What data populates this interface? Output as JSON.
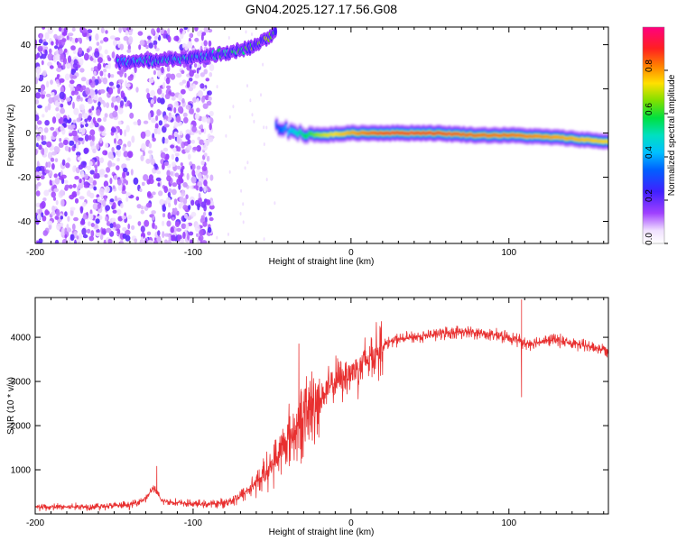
{
  "figure": {
    "title": "GN04.2025.127.17.56.G08"
  },
  "chart_data": [
    {
      "type": "heatmap",
      "xlabel": "Height of straight line (km)",
      "ylabel": "Frequency (Hz)",
      "xlim": [
        -200,
        163
      ],
      "ylim": [
        -50,
        48
      ],
      "xticks": [
        -200,
        -100,
        0,
        100
      ],
      "yticks": [
        -40,
        -20,
        0,
        20,
        40
      ],
      "colorbar": {
        "label": "Normalized spectral amplitude",
        "range": [
          0,
          1
        ],
        "ticks": [
          "0.0",
          "0.2",
          "0.4",
          "0.6",
          "0.8"
        ],
        "colormap": "rainbow (purple-blue-cyan-green-yellow-orange-red-pink)"
      },
      "features": [
        {
          "name": "noise",
          "x_range": [
            -200,
            -88
          ],
          "y_range": [
            -50,
            48
          ],
          "amplitude": 0.1
        },
        {
          "name": "upper-trace",
          "x": [
            -148,
            -120,
            -100,
            -80,
            -62,
            -52,
            -48
          ],
          "y": [
            32,
            33,
            34,
            36,
            39,
            43,
            45
          ],
          "amplitude": [
            0.25,
            0.3,
            0.3,
            0.35,
            0.45,
            0.5,
            0.45
          ]
        },
        {
          "name": "main-trace",
          "x": [
            -48,
            -35,
            -20,
            0,
            20,
            50,
            80,
            100,
            130,
            163
          ],
          "y": [
            3,
            0,
            -1,
            0,
            0,
            0,
            -1,
            -1,
            -2,
            -4
          ],
          "amplitude": [
            0.3,
            0.5,
            0.7,
            0.8,
            0.9,
            0.9,
            0.85,
            0.85,
            0.8,
            0.75
          ]
        }
      ]
    },
    {
      "type": "line",
      "xlabel": "Height of straight line (km)",
      "ylabel": "SNR (10 * v/v)",
      "xlim": [
        -200,
        163
      ],
      "ylim": [
        0,
        4900
      ],
      "xticks": [
        -200,
        -100,
        0,
        100
      ],
      "yticks": [
        1000,
        2000,
        3000,
        4000
      ],
      "series": [
        {
          "color": "#e83030",
          "x": [
            -200,
            -180,
            -160,
            -140,
            -130,
            -125,
            -120,
            -110,
            -100,
            -90,
            -80,
            -70,
            -60,
            -50,
            -45,
            -40,
            -35,
            -30,
            -25,
            -20,
            -15,
            -10,
            -5,
            0,
            5,
            10,
            15,
            20,
            25,
            30,
            40,
            50,
            60,
            70,
            80,
            90,
            100,
            105,
            108,
            110,
            120,
            130,
            140,
            150,
            163
          ],
          "y": [
            150,
            160,
            170,
            200,
            350,
            600,
            300,
            250,
            230,
            220,
            250,
            400,
            700,
            1100,
            1400,
            1700,
            1900,
            2200,
            2400,
            2600,
            2800,
            3000,
            3100,
            3200,
            3300,
            3500,
            3650,
            3800,
            3900,
            3950,
            4000,
            4050,
            4100,
            4120,
            4100,
            4050,
            4000,
            3950,
            3900,
            3850,
            3900,
            3950,
            3850,
            3800,
            3700
          ]
        }
      ],
      "annotations": [
        {
          "x": -123,
          "y": 1080,
          "type": "spike"
        },
        {
          "x": -33,
          "y": 3850,
          "type": "spike"
        },
        {
          "x": 108,
          "y": 4850,
          "type": "spike"
        },
        {
          "x": 108,
          "y": 2650,
          "type": "dip"
        }
      ]
    }
  ]
}
